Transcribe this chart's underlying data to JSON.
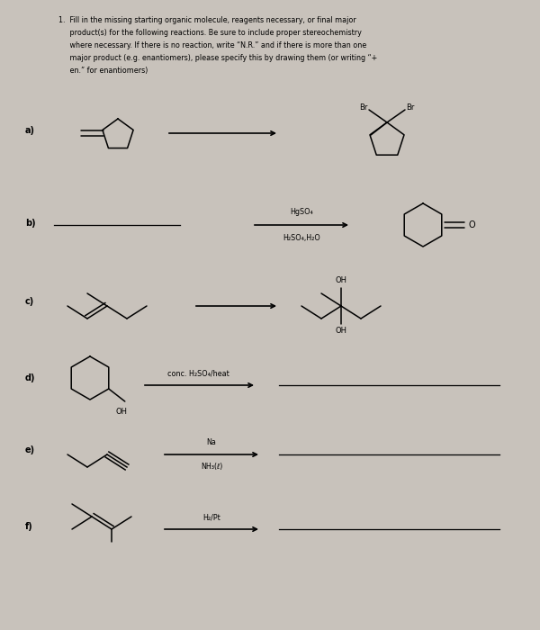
{
  "bg_color": "#c8c2bb",
  "title_line1": "1.  Fill in the missing starting organic molecule, reagents necessary, or final major",
  "title_line2": "     product(s) for the following reactions. Be sure to include proper stereochemistry",
  "title_line3": "     where necessary. If there is no reaction, write “N.R.” and if there is more than one",
  "title_line4": "     major product (e.g. enantiomers), please specify this by drawing them (or writing “+",
  "title_line5": "     en.” for enantiomers)",
  "reagent_b1": "HgSO₄",
  "reagent_b2": "H₂SO₄,H₂O",
  "reagent_d": "conc. H₂SO₄/heat",
  "reagent_e1": "Na",
  "reagent_e2": "NH₃(ℓ)",
  "reagent_f": "H₂/Pt",
  "lw_mol": 1.1,
  "lw_arrow": 1.2,
  "fs_label": 7.5,
  "fs_text": 6.5,
  "fs_reagent": 5.8
}
